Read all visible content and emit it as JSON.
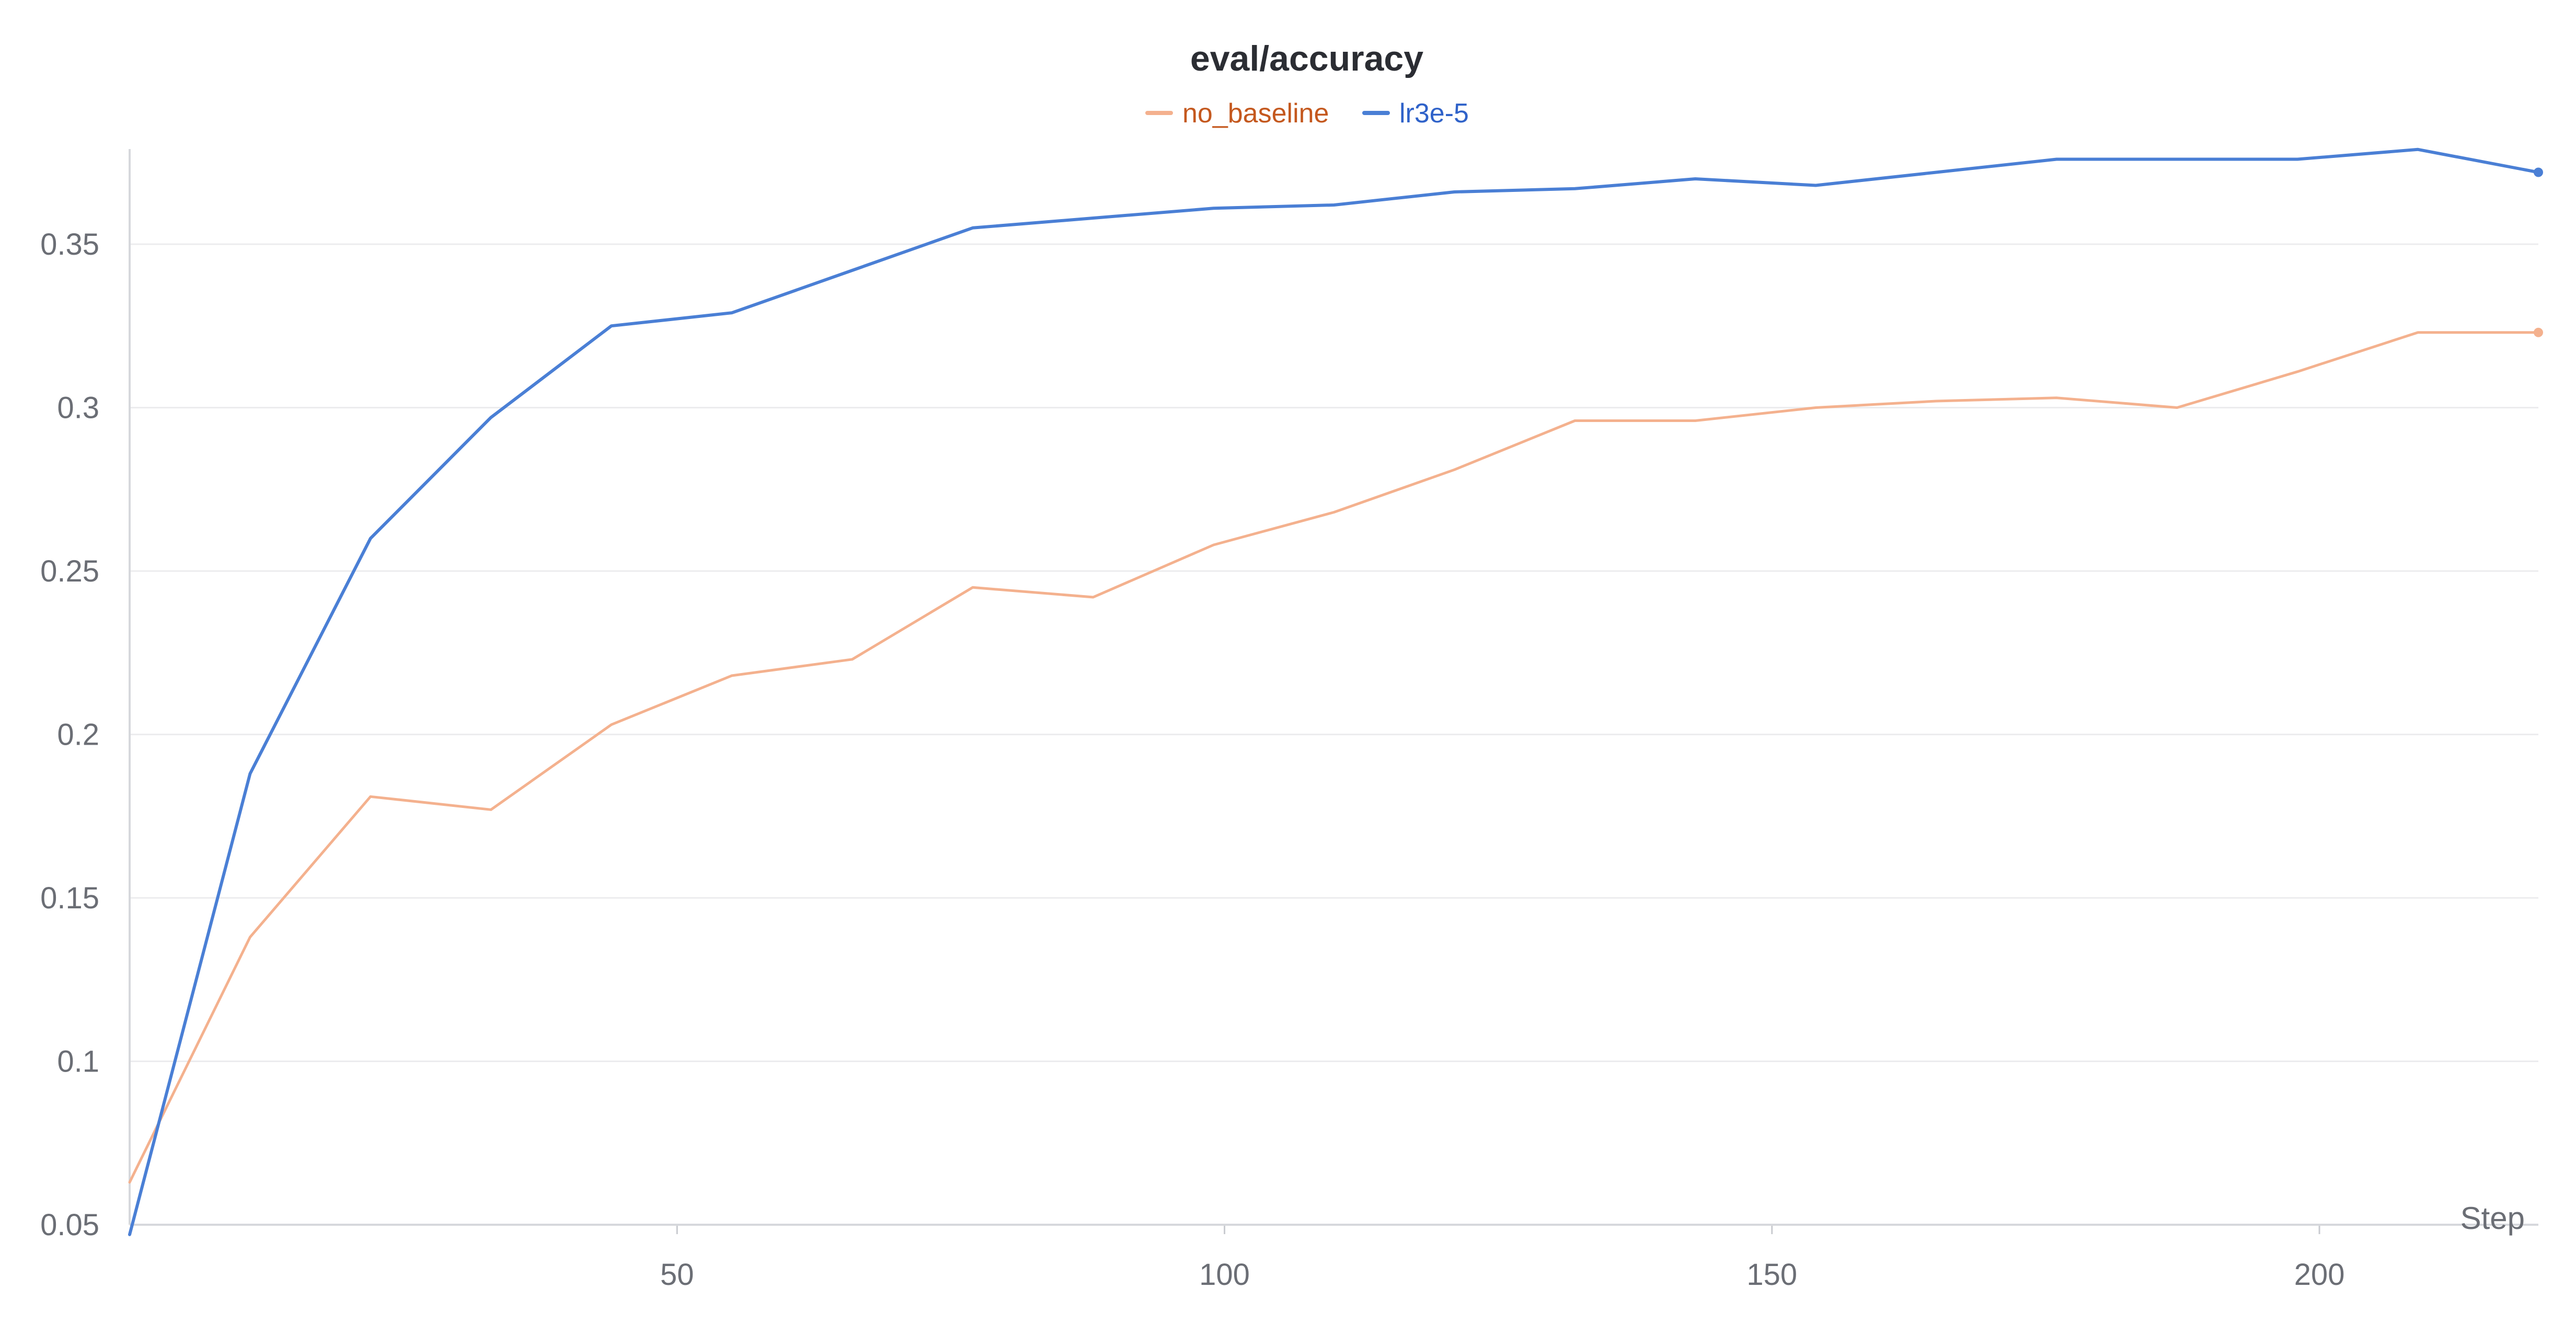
{
  "chart_data": {
    "type": "line",
    "title": "eval/accuracy",
    "xlabel": "Step",
    "ylabel": "",
    "xlim": [
      0,
      220
    ],
    "ylim": [
      0.05,
      0.38
    ],
    "x_ticks": [
      50,
      100,
      150,
      200
    ],
    "y_ticks": [
      0.05,
      0.1,
      0.15,
      0.2,
      0.25,
      0.3,
      0.35
    ],
    "y_tick_labels": [
      "0.05",
      "0.1",
      "0.15",
      "0.2",
      "0.25",
      "0.3",
      "0.35"
    ],
    "x_tick_labels": [
      "50",
      "100",
      "150",
      "200"
    ],
    "grid": true,
    "legend_position": "top-center",
    "series": [
      {
        "name": "no_baseline",
        "color": "#f4b18e",
        "x": [
          0,
          11,
          22,
          33,
          44,
          55,
          66,
          77,
          88,
          99,
          110,
          121,
          132,
          143,
          154,
          165,
          176,
          187,
          198,
          209,
          220
        ],
        "values": [
          0.063,
          0.138,
          0.181,
          0.177,
          0.203,
          0.218,
          0.223,
          0.245,
          0.242,
          0.258,
          0.268,
          0.281,
          0.296,
          0.296,
          0.3,
          0.302,
          0.303,
          0.3,
          0.311,
          0.323,
          0.323
        ]
      },
      {
        "name": "lr3e-5",
        "color": "#4a7fd5",
        "x": [
          0,
          11,
          22,
          33,
          44,
          55,
          66,
          77,
          88,
          99,
          110,
          121,
          132,
          143,
          154,
          165,
          176,
          187,
          198,
          209,
          220
        ],
        "values": [
          0.047,
          0.188,
          0.26,
          0.297,
          0.325,
          0.329,
          0.342,
          0.355,
          0.358,
          0.361,
          0.362,
          0.366,
          0.367,
          0.37,
          0.368,
          0.372,
          0.376,
          0.376,
          0.376,
          0.379,
          0.372
        ]
      }
    ]
  }
}
